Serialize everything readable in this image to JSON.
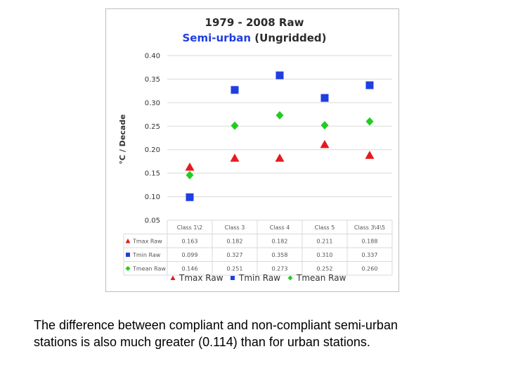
{
  "chart_data": {
    "type": "scatter",
    "title_line1": "1979 - 2008 Raw",
    "title_highlight": "Semi-urban",
    "title_rest": " (Ungridded)",
    "ylabel": "°C / Decade",
    "ylim": [
      0.05,
      0.4
    ],
    "yticks": [
      "0.40",
      "0.35",
      "0.30",
      "0.25",
      "0.20",
      "0.15",
      "0.10",
      "0.05"
    ],
    "categories": [
      "Class 1\\2",
      "Class 3",
      "Class 4",
      "Class 5",
      "Class 3\\4\\5"
    ],
    "series": [
      {
        "name": "Tmax Raw",
        "marker": "triangle",
        "color": "#e8191e",
        "values": [
          0.163,
          0.182,
          0.182,
          0.211,
          0.188
        ],
        "labels": [
          "0.163",
          "0.182",
          "0.182",
          "0.211",
          "0.188"
        ]
      },
      {
        "name": "Tmin Raw",
        "marker": "square",
        "color": "#1f3fe0",
        "values": [
          0.099,
          0.327,
          0.358,
          0.31,
          0.337
        ],
        "labels": [
          "0.099",
          "0.327",
          "0.358",
          "0.310",
          "0.337"
        ]
      },
      {
        "name": "Tmean Raw",
        "marker": "diamond",
        "color": "#22cc22",
        "values": [
          0.146,
          0.251,
          0.273,
          0.252,
          0.26
        ],
        "labels": [
          "0.146",
          "0.251",
          "0.273",
          "0.252",
          "0.260"
        ]
      }
    ],
    "legend_position": "bottom",
    "grid": true
  },
  "colors": {
    "title": "#2b2b2b",
    "title_highlight": "#1f3fe0",
    "grid": "#d9d9d9"
  },
  "caption": {
    "line1": "The difference between compliant and non-compliant semi-urban",
    "line2": "stations is also much greater (0.114) than for urban stations."
  }
}
